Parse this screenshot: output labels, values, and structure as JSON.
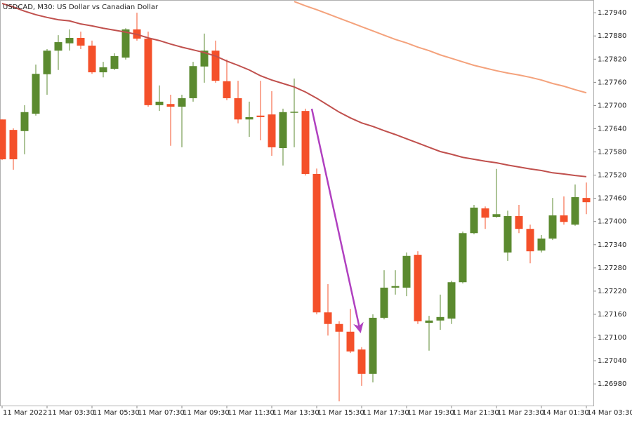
{
  "chart_data": {
    "type": "candlestick",
    "title": "USDCAD, M30:  US Dollar vs Canadian Dollar",
    "categories": [
      "11 Mar 2022",
      null,
      null,
      null,
      "11 Mar 03:30",
      null,
      null,
      null,
      "11 Mar 05:30",
      null,
      null,
      null,
      "11 Mar 07:30",
      null,
      null,
      null,
      "11 Mar 09:30",
      null,
      null,
      null,
      "11 Mar 11:30",
      null,
      null,
      null,
      "11 Mar 13:30",
      null,
      null,
      null,
      "11 Mar 15:30",
      null,
      null,
      null,
      "11 Mar 17:30",
      null,
      null,
      null,
      "11 Mar 19:30",
      null,
      null,
      null,
      "11 Mar 21:30",
      null,
      null,
      null,
      "11 Mar 23:30",
      null,
      null,
      null,
      "14 Mar 01:30",
      null,
      null,
      null,
      "14 Mar 03:30"
    ],
    "open": [
      1.27664,
      1.27637,
      1.27634,
      1.27679,
      1.27781,
      1.27842,
      1.27861,
      1.27875,
      1.27855,
      1.27786,
      1.27795,
      1.27824,
      1.27897,
      1.27873,
      1.27701,
      1.27704,
      1.27697,
      1.27719,
      1.27801,
      1.27842,
      1.27763,
      1.27719,
      1.27664,
      1.27674,
      1.27677,
      1.2759,
      1.27683,
      1.27686,
      1.27523,
      1.27165,
      1.27135,
      1.27115,
      1.27069,
      1.27006,
      1.27151,
      1.27229,
      1.27229,
      1.27314,
      1.27138,
      1.27144,
      1.27149,
      1.27243,
      1.2737,
      1.27434,
      1.27412,
      1.2732,
      1.27414,
      1.27381,
      1.27325,
      1.27356,
      1.27416,
      1.27392,
      1.27461
    ],
    "high": [
      1.27664,
      1.27641,
      1.27701,
      1.27806,
      1.27846,
      1.27882,
      1.27897,
      1.27891,
      1.27868,
      1.27813,
      1.27835,
      1.279,
      1.2794,
      1.27891,
      1.27752,
      1.27728,
      1.27728,
      1.27813,
      1.27886,
      1.27868,
      1.27819,
      1.27764,
      1.2771,
      1.27764,
      1.27737,
      1.27692,
      1.2777,
      1.27692,
      1.27537,
      1.27238,
      1.27142,
      1.27174,
      1.27075,
      1.2716,
      1.27274,
      1.27274,
      1.2732,
      1.27323,
      1.27156,
      1.27211,
      1.27247,
      1.27374,
      1.27443,
      1.27439,
      1.27536,
      1.27428,
      1.27443,
      1.27392,
      1.27365,
      1.27461,
      1.27465,
      1.27496,
      1.27501
    ],
    "low": [
      1.27559,
      1.27534,
      1.27574,
      1.27674,
      1.27728,
      1.27792,
      1.27842,
      1.27846,
      1.27782,
      1.27773,
      1.27792,
      1.27819,
      1.27868,
      1.27697,
      1.27686,
      1.27596,
      1.27592,
      1.2771,
      1.27759,
      1.27759,
      1.27714,
      1.27654,
      1.27619,
      1.2761,
      1.2757,
      1.27545,
      1.27592,
      1.27519,
      1.2716,
      1.27105,
      1.26935,
      1.2706,
      1.26975,
      1.26984,
      1.27147,
      1.27211,
      1.27207,
      1.27135,
      1.27066,
      1.2712,
      1.27135,
      1.2724,
      1.27367,
      1.27381,
      1.2741,
      1.27298,
      1.2737,
      1.27292,
      1.2732,
      1.27352,
      1.27392,
      1.27389,
      1.27419
    ],
    "close": [
      1.27561,
      1.27561,
      1.27683,
      1.27782,
      1.27842,
      1.27864,
      1.27875,
      1.27855,
      1.27786,
      1.27799,
      1.27828,
      1.27897,
      1.27873,
      1.27701,
      1.2771,
      1.27697,
      1.27719,
      1.27802,
      1.27842,
      1.27764,
      1.27719,
      1.27664,
      1.2767,
      1.2767,
      1.27592,
      1.27683,
      1.27684,
      1.27523,
      1.27165,
      1.27135,
      1.27115,
      1.27064,
      1.27006,
      1.27151,
      1.27229,
      1.27233,
      1.27311,
      1.27142,
      1.27144,
      1.27153,
      1.27243,
      1.2737,
      1.27436,
      1.2741,
      1.27419,
      1.27414,
      1.27381,
      1.27323,
      1.27356,
      1.27416,
      1.27399,
      1.27463,
      1.2745
    ],
    "up_color": "#5b8a2f",
    "down_color": "#f4502a",
    "lines": [
      {
        "color": "#c0504d",
        "values": [
          1.27964,
          1.27955,
          1.27944,
          1.27935,
          1.27928,
          1.27922,
          1.27919,
          1.27911,
          1.27906,
          1.279,
          1.27895,
          1.2789,
          1.27884,
          1.27875,
          1.27868,
          1.27859,
          1.27851,
          1.27844,
          1.27837,
          1.27828,
          1.27815,
          1.27804,
          1.27792,
          1.27777,
          1.27766,
          1.27757,
          1.27748,
          1.27735,
          1.27719,
          1.27701,
          1.27683,
          1.27668,
          1.27655,
          1.27646,
          1.27635,
          1.27625,
          1.27614,
          1.27603,
          1.27592,
          1.27581,
          1.27574,
          1.27566,
          1.27561,
          1.27556,
          1.27552,
          1.27546,
          1.27541,
          1.27536,
          1.27532,
          1.27526,
          1.27523,
          1.27519,
          1.27516
        ]
      },
      {
        "color": "#f4a27c",
        "values": [
          null,
          null,
          null,
          null,
          null,
          null,
          null,
          null,
          null,
          null,
          null,
          null,
          null,
          null,
          null,
          null,
          null,
          null,
          null,
          null,
          null,
          null,
          null,
          null,
          null,
          null,
          1.27969,
          1.27958,
          1.27948,
          1.27937,
          1.27926,
          1.27915,
          1.27904,
          1.27893,
          1.27882,
          1.27871,
          1.27862,
          1.27851,
          1.27842,
          1.27831,
          1.27822,
          1.27813,
          1.27804,
          1.27797,
          1.2779,
          1.27784,
          1.27779,
          1.27773,
          1.27766,
          1.27757,
          1.2775,
          1.27741,
          1.27733
        ]
      }
    ],
    "ylim": [
      1.26924,
      1.27973
    ],
    "yticks": [
      {
        "value": 1.2794,
        "label": "1.27940"
      },
      {
        "value": 1.2788,
        "label": "1.27880"
      },
      {
        "value": 1.2782,
        "label": "1.27820"
      },
      {
        "value": 1.2776,
        "label": "1.27760"
      },
      {
        "value": 1.277,
        "label": "1.27700"
      },
      {
        "value": 1.2764,
        "label": "1.27640"
      },
      {
        "value": 1.2758,
        "label": "1.27580"
      },
      {
        "value": 1.2752,
        "label": "1.27520"
      },
      {
        "value": 1.2746,
        "label": "1.27460"
      },
      {
        "value": 1.274,
        "label": "1.27400"
      },
      {
        "value": 1.2734,
        "label": "1.27340"
      },
      {
        "value": 1.2728,
        "label": "1.27280"
      },
      {
        "value": 1.2722,
        "label": "1.27220"
      },
      {
        "value": 1.2716,
        "label": "1.27160"
      },
      {
        "value": 1.271,
        "label": "1.27100"
      },
      {
        "value": 1.2704,
        "label": "1.27040"
      },
      {
        "value": 1.2698,
        "label": "1.26980"
      }
    ]
  }
}
